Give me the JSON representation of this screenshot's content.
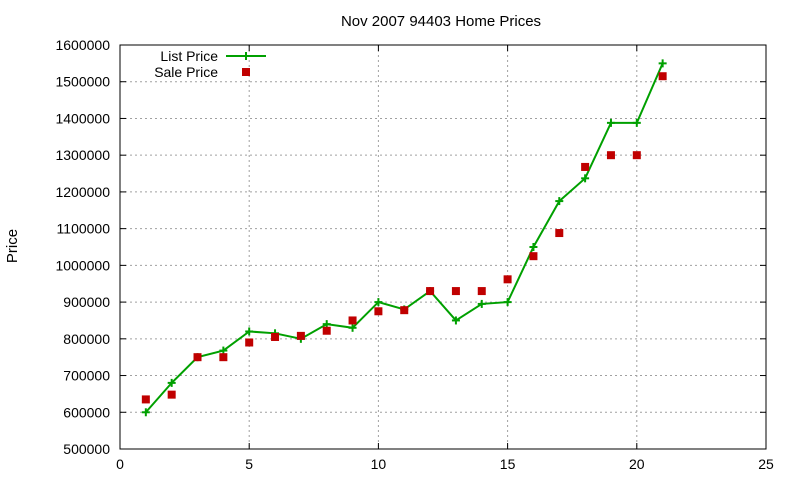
{
  "chart_data": {
    "type": "line",
    "title": "Nov 2007 94403 Home Prices",
    "xlabel": "",
    "ylabel": "Price",
    "xlim": [
      0,
      25
    ],
    "ylim": [
      500000,
      1600000
    ],
    "xticks": [
      0,
      5,
      10,
      15,
      20,
      25
    ],
    "yticks": [
      500000,
      600000,
      700000,
      800000,
      900000,
      1000000,
      1100000,
      1200000,
      1300000,
      1400000,
      1500000,
      1600000
    ],
    "grid": true,
    "legend_position": "top-left",
    "series": [
      {
        "name": "List Price",
        "style": "line+cross",
        "color": "#00a000",
        "x": [
          1,
          2,
          3,
          4,
          5,
          6,
          7,
          8,
          9,
          10,
          11,
          12,
          13,
          14,
          15,
          16,
          17,
          18,
          19,
          20,
          21
        ],
        "y": [
          600000,
          680000,
          750000,
          768000,
          820000,
          815000,
          800000,
          840000,
          830000,
          900000,
          880000,
          930000,
          850000,
          895000,
          900000,
          1050000,
          1175000,
          1237000,
          1388000,
          1388000,
          1550000
        ]
      },
      {
        "name": "Sale Price",
        "style": "square",
        "color": "#c00000",
        "x": [
          1,
          2,
          3,
          4,
          5,
          6,
          7,
          8,
          9,
          10,
          11,
          12,
          13,
          14,
          15,
          16,
          17,
          18,
          19,
          20,
          21
        ],
        "y": [
          635000,
          648000,
          750000,
          750000,
          790000,
          805000,
          808000,
          822000,
          850000,
          875000,
          878000,
          930000,
          930000,
          930000,
          962000,
          1025000,
          1088000,
          1268000,
          1300000,
          1300000,
          1515000
        ]
      }
    ]
  }
}
